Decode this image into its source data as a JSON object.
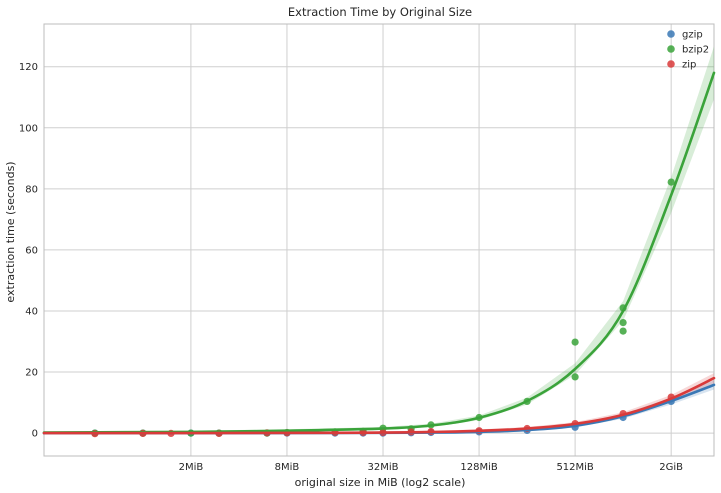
{
  "chart_data": {
    "type": "scatter",
    "title": "Extraction Time by Original Size",
    "xlabel": "original size in MiB (log2 scale)",
    "ylabel": "extraction time (seconds)",
    "x_scale": "log2",
    "x_unit": "MiB",
    "xlim": [
      0.24,
      3800
    ],
    "ylim": [
      -7.5,
      134
    ],
    "x_ticks": [
      {
        "value": 2,
        "label": "2MiB"
      },
      {
        "value": 8,
        "label": "8MiB"
      },
      {
        "value": 32,
        "label": "32MiB"
      },
      {
        "value": 128,
        "label": "128MiB"
      },
      {
        "value": 512,
        "label": "512MiB"
      },
      {
        "value": 2048,
        "label": "2GiB"
      }
    ],
    "y_ticks": [
      {
        "value": 0,
        "label": "0"
      },
      {
        "value": 20,
        "label": "20"
      },
      {
        "value": 40,
        "label": "40"
      },
      {
        "value": 60,
        "label": "60"
      },
      {
        "value": 80,
        "label": "80"
      },
      {
        "value": 100,
        "label": "100"
      },
      {
        "value": 120,
        "label": "120"
      }
    ],
    "grid": true,
    "legend_position": "top-right",
    "series": [
      {
        "name": "gzip",
        "color": "#3a78b5",
        "points": [
          [
            0.5,
            0
          ],
          [
            1,
            0
          ],
          [
            2,
            0
          ],
          [
            3,
            0
          ],
          [
            6,
            0
          ],
          [
            8,
            0
          ],
          [
            16,
            0
          ],
          [
            24,
            0
          ],
          [
            32,
            0
          ],
          [
            48,
            0.1
          ],
          [
            64,
            0.2
          ],
          [
            128,
            0.4
          ],
          [
            256,
            0.9
          ],
          [
            512,
            1.9
          ],
          [
            1024,
            5.1
          ],
          [
            2048,
            10.4
          ]
        ],
        "fit": [
          [
            0.24,
            0
          ],
          [
            16,
            0.03
          ],
          [
            64,
            0.15
          ],
          [
            128,
            0.4
          ],
          [
            256,
            1.0
          ],
          [
            512,
            2.4
          ],
          [
            1024,
            5.5
          ],
          [
            2048,
            10.5
          ],
          [
            3800,
            15.8
          ]
        ]
      },
      {
        "name": "bzip2",
        "color": "#3aa33a",
        "points": [
          [
            0.5,
            0
          ],
          [
            1,
            0
          ],
          [
            2,
            0
          ],
          [
            3,
            0
          ],
          [
            6,
            0
          ],
          [
            8,
            0.2
          ],
          [
            16,
            0.4
          ],
          [
            24,
            0.6
          ],
          [
            32,
            1.6
          ],
          [
            48,
            1.4
          ],
          [
            64,
            2.7
          ],
          [
            128,
            5.1
          ],
          [
            256,
            10.4
          ],
          [
            512,
            29.8
          ],
          [
            512,
            18.4
          ],
          [
            1024,
            41
          ],
          [
            1024,
            36.2
          ],
          [
            1024,
            33.4
          ],
          [
            2048,
            82.2
          ]
        ],
        "fit": [
          [
            0.24,
            0.2
          ],
          [
            2,
            0.4
          ],
          [
            8,
            0.8
          ],
          [
            32,
            1.5
          ],
          [
            64,
            2.5
          ],
          [
            128,
            5
          ],
          [
            256,
            10.5
          ],
          [
            512,
            21
          ],
          [
            1024,
            40
          ],
          [
            2048,
            78
          ],
          [
            3800,
            118
          ]
        ]
      },
      {
        "name": "zip",
        "color": "#d93a3a",
        "points": [
          [
            0.5,
            -0.2
          ],
          [
            1,
            -0.1
          ],
          [
            1.5,
            -0.1
          ],
          [
            3,
            -0.1
          ],
          [
            6,
            0.1
          ],
          [
            8,
            0.1
          ],
          [
            16,
            0.2
          ],
          [
            24,
            0.2
          ],
          [
            32,
            0.2
          ],
          [
            48,
            0.4
          ],
          [
            64,
            0.5
          ],
          [
            128,
            0.8
          ],
          [
            256,
            1.5
          ],
          [
            512,
            3.1
          ],
          [
            1024,
            6.4
          ],
          [
            2048,
            11.8
          ]
        ],
        "fit": [
          [
            0.24,
            0
          ],
          [
            16,
            0.1
          ],
          [
            64,
            0.35
          ],
          [
            128,
            0.75
          ],
          [
            256,
            1.5
          ],
          [
            512,
            3.0
          ],
          [
            1024,
            6.0
          ],
          [
            2048,
            11.3
          ],
          [
            3800,
            18
          ]
        ]
      }
    ]
  }
}
